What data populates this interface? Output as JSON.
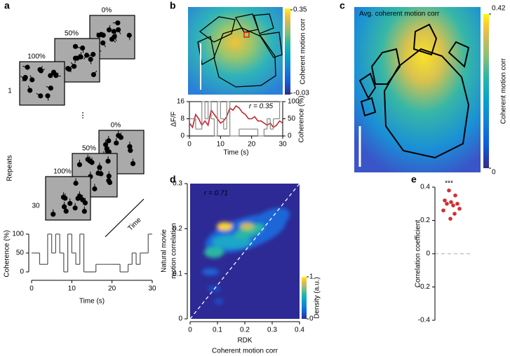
{
  "panel_labels": [
    "a",
    "b",
    "c",
    "d",
    "e"
  ],
  "stimulus": {
    "repeats_label": "Repeats",
    "time_label": "Time",
    "ellipsis": "⋮",
    "sets": [
      {
        "label": "1",
        "coherences": [
          "0%",
          "50%",
          "100%"
        ]
      },
      {
        "label": "30",
        "coherences": [
          "0%",
          "50%",
          "100%"
        ]
      }
    ]
  },
  "maps": [
    {
      "colorbar_label": "Coherent motion corr",
      "colorbar_ticks": [
        -0.03,
        0.35
      ]
    },
    {
      "title": "Avg. coherent motion corr",
      "colorbar_label": "Coherent motion corr",
      "colorbar_ticks": [
        0,
        0.42
      ]
    }
  ],
  "chart_data": [
    {
      "type": "step",
      "xlabel": "Time (s)",
      "ylabel": "Coherence (%)",
      "color": "#555555",
      "x": [
        0,
        2,
        4,
        5,
        6,
        7,
        8,
        9,
        10,
        11,
        12,
        13,
        16,
        20,
        22,
        24,
        25,
        26,
        27,
        29
      ],
      "values": [
        50,
        20,
        100,
        50,
        100,
        50,
        0,
        100,
        50,
        20,
        100,
        0,
        20,
        20,
        0,
        20,
        50,
        20,
        50,
        100
      ],
      "xlim": [
        0,
        30
      ],
      "xticks": [
        0,
        10,
        20,
        30
      ],
      "ylim": [
        0,
        100
      ],
      "yticks": [
        0,
        50,
        100
      ]
    },
    {
      "type": "line",
      "xlabel": "Time (s)",
      "ylabel": "ΔF/F",
      "y2label": "Coherence (%)",
      "annotation": "r = 0.35",
      "series": [
        {
          "color": "#c0282d",
          "x": [
            0,
            1,
            2,
            3,
            4,
            5,
            6,
            7,
            8,
            9,
            10,
            11,
            12,
            13,
            14,
            15,
            16,
            17,
            18,
            19,
            20,
            21,
            22,
            23,
            24,
            25,
            26,
            27,
            28,
            29,
            30
          ],
          "values": [
            6,
            4,
            10,
            8,
            5,
            7,
            5,
            12,
            10,
            8,
            6,
            7,
            9,
            13,
            12,
            14,
            13,
            11,
            10,
            8,
            8,
            9,
            7,
            7,
            6,
            5,
            6,
            4,
            5,
            7,
            6
          ]
        },
        {
          "color": "#888888",
          "axis": "y2",
          "step": true,
          "x": [
            0,
            2,
            4,
            5,
            6,
            7,
            8,
            9,
            10,
            11,
            12,
            13,
            16,
            20,
            22,
            24,
            25,
            26,
            27,
            29
          ],
          "values": [
            50,
            20,
            100,
            50,
            100,
            50,
            0,
            100,
            50,
            20,
            100,
            0,
            20,
            20,
            0,
            20,
            50,
            20,
            50,
            100
          ]
        }
      ],
      "xlim": [
        0,
        30
      ],
      "xticks": [
        0,
        10,
        20,
        30
      ],
      "ylim": [
        0,
        16
      ],
      "yticks": [
        0,
        8,
        16
      ],
      "y2lim": [
        0,
        100
      ],
      "y2ticks": [
        0,
        50,
        100
      ]
    },
    {
      "type": "density",
      "xlabel": [
        "RDK",
        "Coherent motion corr"
      ],
      "ylabel": [
        "Natural movie",
        "motion correlation"
      ],
      "annotation": "r = 0.71",
      "xlim": [
        0,
        0.4
      ],
      "xticks": [
        0,
        0.1,
        0.2,
        0.3,
        0.4
      ],
      "ylim": [
        0,
        0.3
      ],
      "yticks": [
        0,
        0.1,
        0.2,
        0.3
      ],
      "colorbar_label": "Density (a.u.)",
      "colorbar_ticks": [
        0,
        1
      ]
    },
    {
      "type": "strip",
      "ylabel": "Correlation coefficient",
      "annotation": "***",
      "color": "#d32f2f",
      "values": [
        0.38,
        0.35,
        0.32,
        0.31,
        0.3,
        0.3,
        0.29,
        0.27,
        0.26,
        0.24,
        0.21
      ],
      "ylim": [
        -0.4,
        0.4
      ],
      "yticks": [
        -0.4,
        -0.2,
        0,
        0.2,
        0.4
      ]
    }
  ]
}
